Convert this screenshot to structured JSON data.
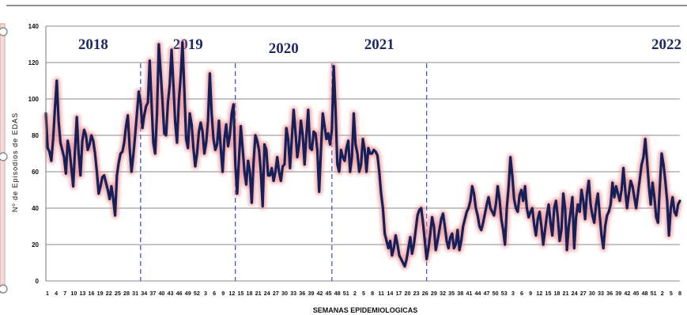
{
  "chart_data": {
    "type": "line",
    "title": "",
    "xlabel": "SEMANAS EPIDEMIOLOGICAS",
    "ylabel": "Nº de Episodios de EDAS",
    "ylim": [
      0,
      140
    ],
    "yticks": [
      0,
      20,
      40,
      60,
      80,
      100,
      120,
      140
    ],
    "grid": true,
    "colors": {
      "line": "#14205a",
      "glow": "#f08a8a",
      "divider": "#3a44d8",
      "grid": "#888888"
    },
    "week_ticks": [
      "1",
      "4",
      "7",
      "10",
      "13",
      "16",
      "19",
      "22",
      "25",
      "28",
      "31",
      "34",
      "37",
      "40",
      "43",
      "46",
      "49",
      "52",
      "3",
      "6",
      "9",
      "12",
      "15",
      "18",
      "21",
      "24",
      "27",
      "30",
      "33",
      "36",
      "39",
      "42",
      "45",
      "48",
      "51",
      "2",
      "5",
      "8",
      "11",
      "14",
      "17",
      "20",
      "23",
      "26",
      "29",
      "32",
      "35",
      "38",
      "41",
      "44",
      "47",
      "50",
      "53",
      "3",
      "6",
      "9",
      "12",
      "15",
      "18",
      "21",
      "24",
      "27",
      "30",
      "33",
      "36",
      "39",
      "42",
      "45",
      "48",
      "51",
      "2",
      "5",
      "8"
    ],
    "year_labels": [
      "2018",
      "2019",
      "2020",
      "2021",
      "2022"
    ],
    "year_start_week_index": [
      0,
      52,
      104,
      157,
      209
    ],
    "series": [
      {
        "values": [
          92,
          73,
          71,
          66,
          78,
          95,
          110,
          88,
          76,
          72,
          68,
          59,
          77,
          72,
          62,
          52,
          72,
          90,
          70,
          58,
          77,
          83,
          80,
          72,
          75,
          80,
          77,
          70,
          60,
          48,
          52,
          57,
          58,
          54,
          50,
          45,
          52,
          45,
          36,
          58,
          65,
          70,
          71,
          76,
          85,
          91,
          73,
          60,
          69,
          80,
          92,
          104,
          98,
          84,
          91,
          96,
          98,
          121,
          98,
          76,
          70,
          92,
          130,
          115,
          99,
          81,
          80,
          98,
          108,
          127,
          108,
          87,
          76,
          99,
          112,
          131,
          105,
          78,
          73,
          92,
          86,
          73,
          63,
          70,
          82,
          87,
          82,
          70,
          76,
          88,
          114,
          92,
          78,
          72,
          75,
          88,
          73,
          60,
          78,
          86,
          74,
          80,
          92,
          97,
          64,
          48,
          67,
          85,
          73,
          60,
          53,
          66,
          60,
          43,
          65,
          80,
          77,
          72,
          60,
          41,
          75,
          72,
          58,
          58,
          62,
          55,
          60,
          68,
          60,
          55,
          63,
          64,
          84,
          78,
          62,
          78,
          94,
          82,
          68,
          75,
          88,
          80,
          64,
          80,
          94,
          73,
          72,
          82,
          81,
          72,
          49,
          72,
          92,
          85,
          78,
          81,
          75,
          83,
          118,
          94,
          64,
          60,
          72,
          68,
          66,
          73,
          77,
          60,
          68,
          92,
          75,
          70,
          60,
          64,
          78,
          72,
          60,
          73,
          70,
          70,
          72,
          71,
          69,
          60,
          48,
          40,
          26,
          22,
          18,
          22,
          14,
          18,
          25,
          20,
          14,
          12,
          10,
          8,
          12,
          18,
          24,
          15,
          20,
          28,
          36,
          39,
          40,
          32,
          22,
          12,
          18,
          26,
          35,
          30,
          17,
          22,
          28,
          34,
          37,
          30,
          22,
          18,
          24,
          26,
          18,
          20,
          28,
          17,
          22,
          30,
          34,
          38,
          40,
          44,
          52,
          48,
          40,
          36,
          30,
          28,
          32,
          37,
          42,
          46,
          40,
          38,
          36,
          42,
          52,
          45,
          34,
          28,
          20,
          40,
          52,
          68,
          58,
          45,
          40,
          38,
          47,
          50,
          44,
          52,
          40,
          35,
          38,
          40,
          31,
          25,
          34,
          38,
          30,
          20,
          28,
          36,
          42,
          32,
          25,
          40,
          44,
          35,
          22,
          28,
          48,
          40,
          17,
          30,
          38,
          46,
          18,
          35,
          42,
          38,
          50,
          44,
          34,
          48,
          55,
          42,
          36,
          32,
          42,
          48,
          36,
          25,
          18,
          30,
          36,
          38,
          42,
          54,
          46,
          52,
          48,
          44,
          50,
          62,
          50,
          40,
          48,
          55,
          52,
          46,
          40,
          48,
          56,
          64,
          68,
          78,
          66,
          52,
          42,
          54,
          46,
          35,
          32,
          52,
          70,
          64,
          55,
          44,
          25,
          40,
          46,
          38,
          36,
          42,
          44
        ]
      }
    ]
  }
}
